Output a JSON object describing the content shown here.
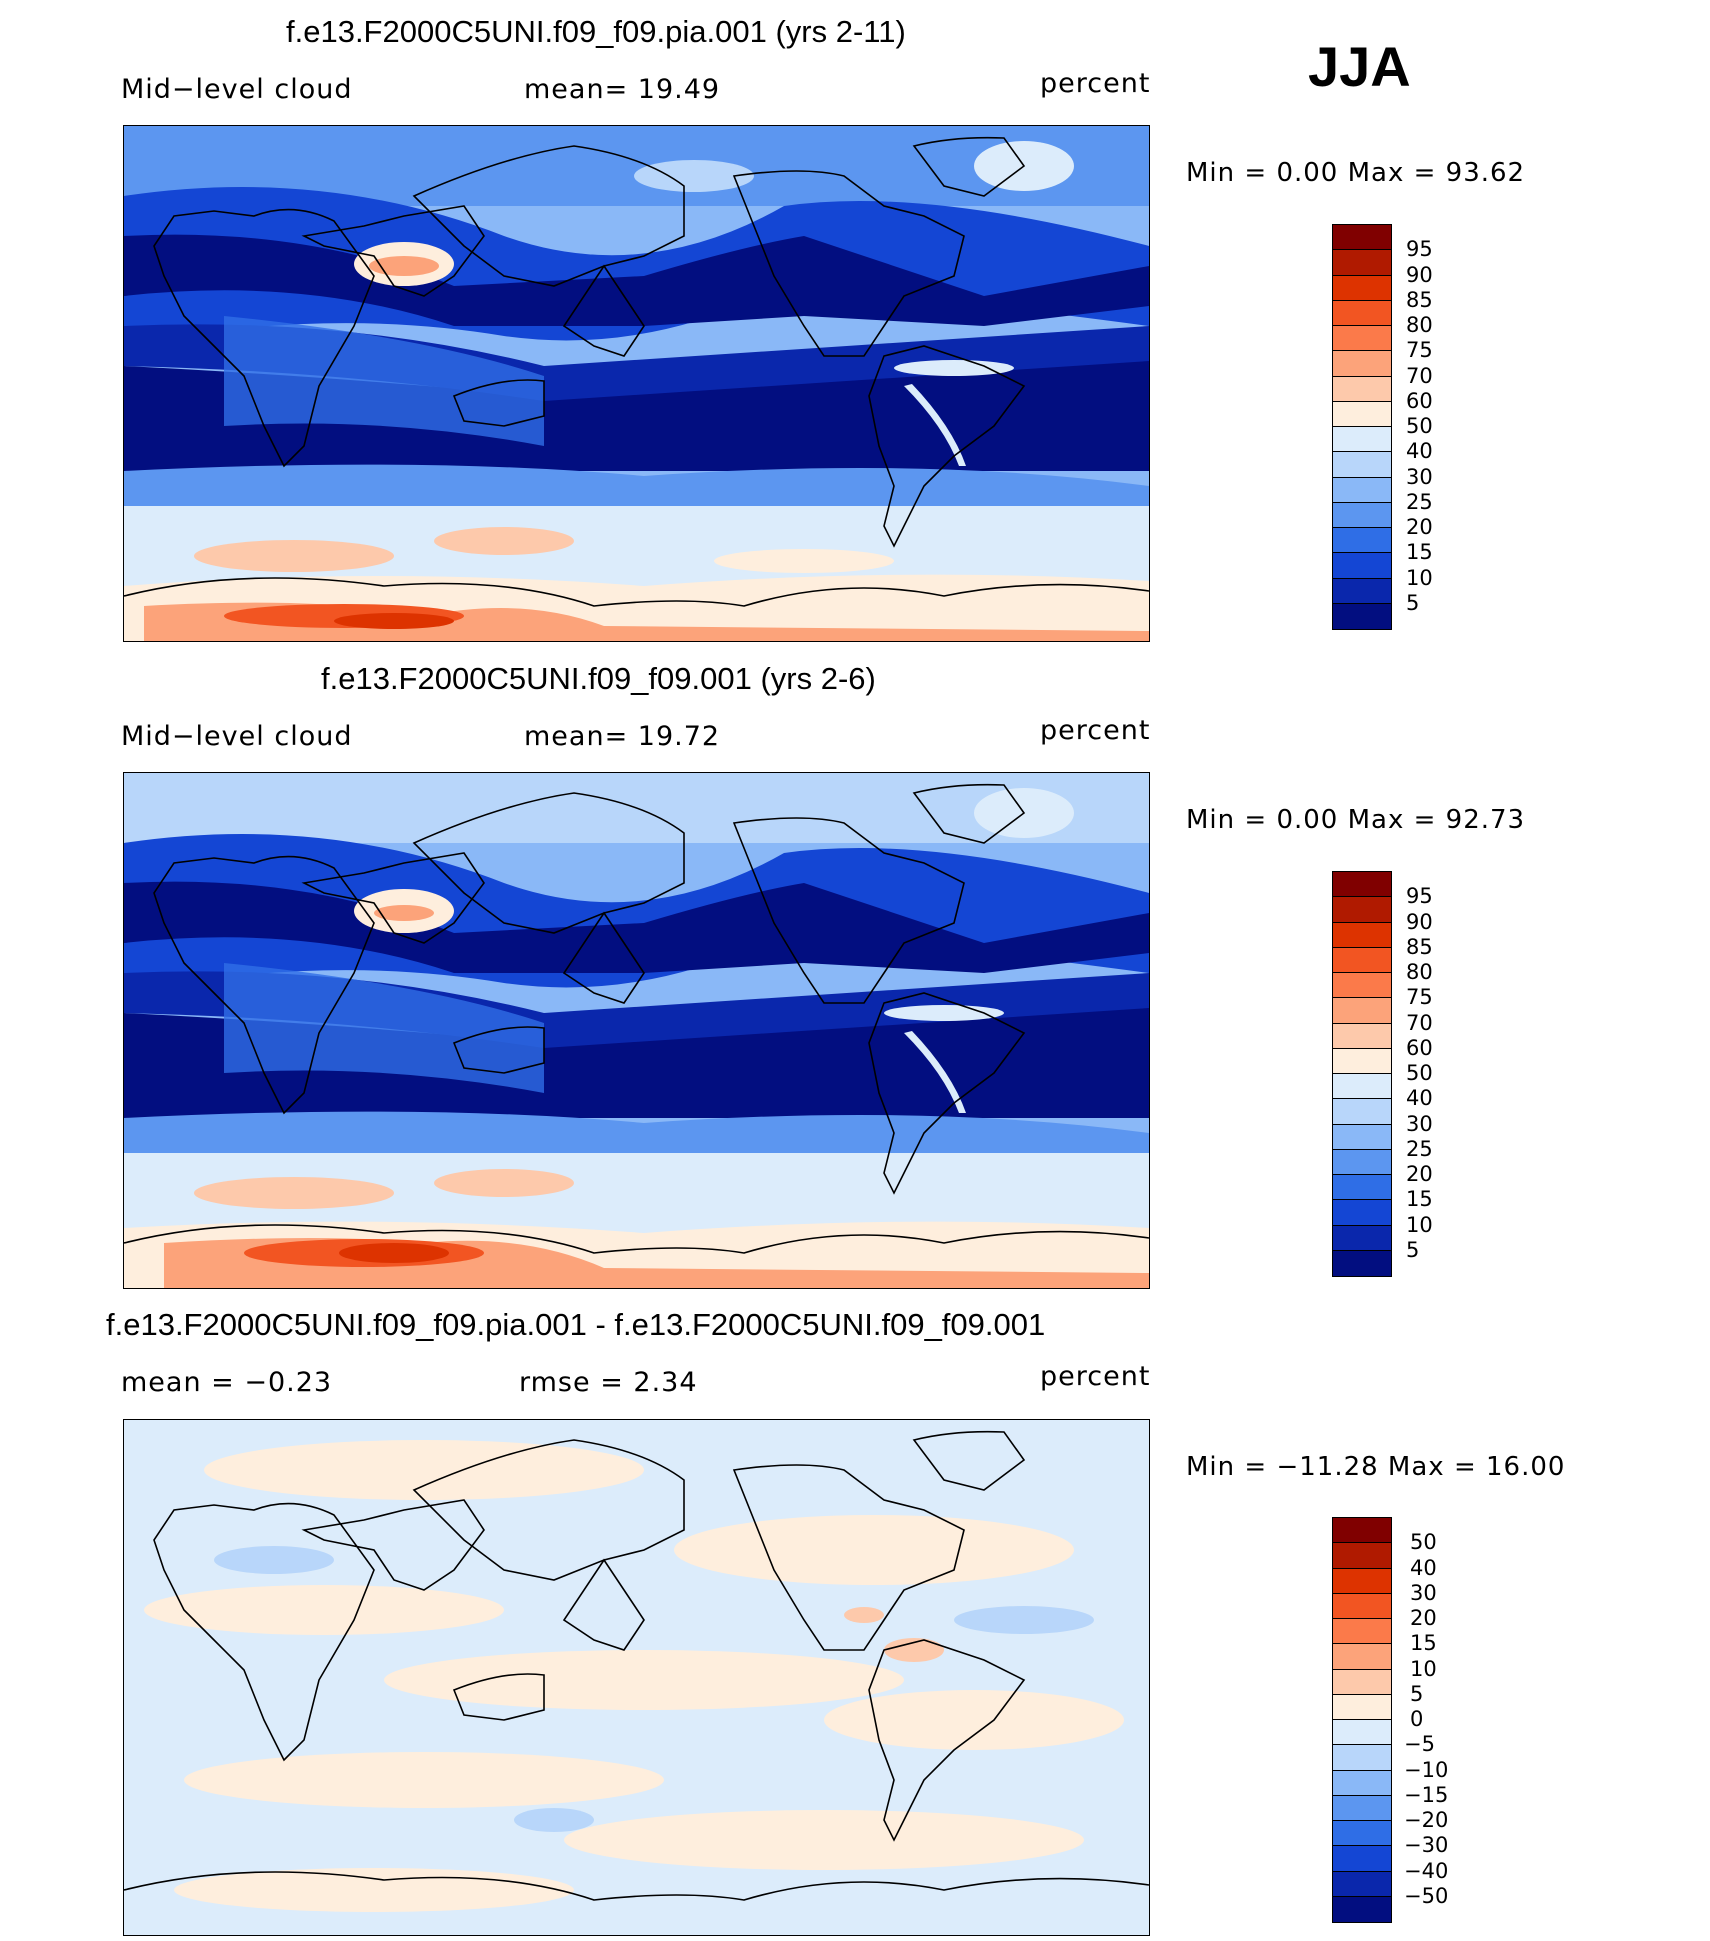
{
  "season": "JJA",
  "panels": [
    {
      "title": "f.e13.F2000C5UNI.f09_f09.pia.001 (yrs 2-11)",
      "left_label": "Mid−level cloud",
      "center_label": "mean=   19.49",
      "units": "percent",
      "minmax": "Min  =     0.00  Max  =    93.62",
      "kind": "abs"
    },
    {
      "title": "f.e13.F2000C5UNI.f09_f09.001 (yrs 2-6)",
      "left_label": "Mid−level cloud",
      "center_label": "mean=   19.72",
      "units": "percent",
      "minmax": "Min  =     0.00  Max  =    92.73",
      "kind": "abs"
    },
    {
      "title": "f.e13.F2000C5UNI.f09_f09.pia.001 - f.e13.F2000C5UNI.f09_f09.001",
      "left_label": "mean  =   −0.23",
      "center_label": "rmse  =      2.34",
      "units": "percent",
      "minmax": "Min  =  −11.28  Max  =    16.00",
      "kind": "diff"
    }
  ],
  "colorbars": {
    "abs": {
      "labels": [
        "95",
        "90",
        "85",
        "80",
        "75",
        "70",
        "60",
        "50",
        "40",
        "30",
        "25",
        "20",
        "15",
        "10",
        "5"
      ],
      "colors": [
        "#800000",
        "#b01a00",
        "#dd3300",
        "#f25522",
        "#fb7a4a",
        "#fca37a",
        "#fdc9ab",
        "#feeedd",
        "#dcecfb",
        "#b8d6fa",
        "#8ab8f7",
        "#5c96f0",
        "#2f6ee6",
        "#1446d4",
        "#0a27ac",
        "#020e80"
      ]
    },
    "diff": {
      "labels": [
        "50",
        "40",
        "30",
        "20",
        "15",
        "10",
        "5",
        "0",
        "−5",
        "−10",
        "−15",
        "−20",
        "−30",
        "−40",
        "−50"
      ],
      "colors": [
        "#800000",
        "#b01a00",
        "#dd3300",
        "#f25522",
        "#fb7a4a",
        "#fca37a",
        "#fdc9ab",
        "#feeedd",
        "#dcecfb",
        "#b8d6fa",
        "#8ab8f7",
        "#5c96f0",
        "#2f6ee6",
        "#1446d4",
        "#0a27ac",
        "#020e80"
      ]
    }
  }
}
